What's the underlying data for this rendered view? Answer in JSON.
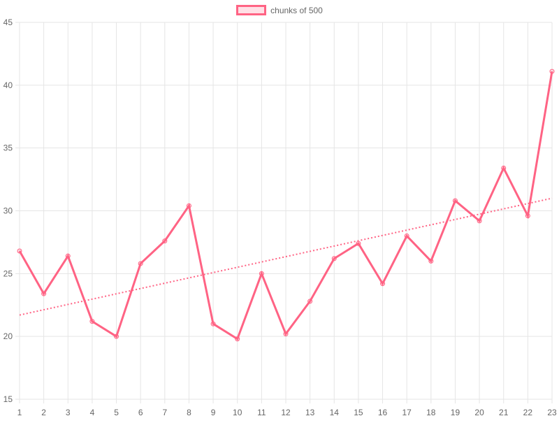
{
  "chart_data": {
    "type": "line",
    "legend_position": "top",
    "grid": true,
    "categories": [
      "1",
      "2",
      "3",
      "4",
      "5",
      "6",
      "7",
      "8",
      "9",
      "10",
      "11",
      "12",
      "13",
      "14",
      "15",
      "16",
      "17",
      "18",
      "19",
      "20",
      "21",
      "22",
      "23"
    ],
    "series": [
      {
        "name": "chunks of 500",
        "color": "#ff6384",
        "values": [
          26.8,
          23.4,
          26.4,
          21.2,
          20.0,
          25.8,
          27.6,
          30.4,
          21.0,
          19.8,
          25.0,
          20.2,
          22.8,
          26.2,
          27.4,
          24.2,
          28.0,
          26.0,
          30.8,
          29.2,
          33.4,
          29.6,
          41.1
        ]
      }
    ],
    "trendline": {
      "style": "dotted",
      "color": "#ff6384",
      "start": 21.7,
      "end": 31.0
    },
    "ylim": [
      15,
      45
    ],
    "yticks": [
      "15",
      "20",
      "25",
      "30",
      "35",
      "40",
      "45"
    ],
    "xlabel": "",
    "ylabel": "",
    "title": ""
  }
}
